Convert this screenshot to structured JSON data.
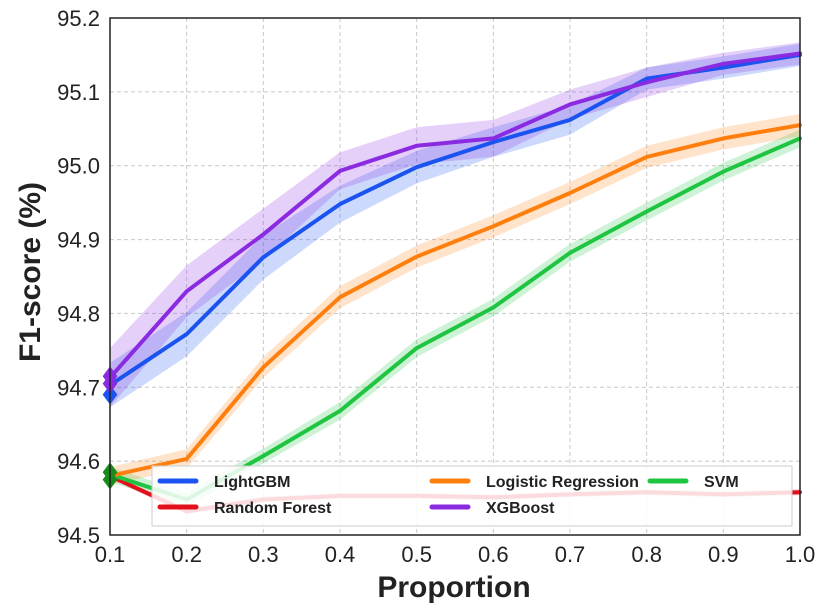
{
  "chart_data": {
    "type": "line",
    "xlabel": "Proportion",
    "ylabel": "F1-score (%)",
    "xlim": [
      0.1,
      1.0
    ],
    "ylim": [
      94.5,
      95.2
    ],
    "xticks": [
      "0.1",
      "0.2",
      "0.3",
      "0.4",
      "0.5",
      "0.6",
      "0.7",
      "0.8",
      "0.9",
      "1.0"
    ],
    "yticks": [
      "94.5",
      "94.6",
      "94.7",
      "94.8",
      "94.9",
      "95.0",
      "95.1",
      "95.2"
    ],
    "grid": true,
    "legend_position": "bottom",
    "x": [
      0.1,
      0.2,
      0.3,
      0.4,
      0.5,
      0.6,
      0.7,
      0.8,
      0.9,
      1.0
    ],
    "series": [
      {
        "name": "LightGBM",
        "color": "#1a53f0",
        "values": [
          94.703,
          94.772,
          94.876,
          94.948,
          94.998,
          95.032,
          95.062,
          95.118,
          95.133,
          95.15
        ],
        "band": [
          0.03,
          0.03,
          0.03,
          0.025,
          0.022,
          0.02,
          0.02,
          0.015,
          0.015,
          0.015
        ]
      },
      {
        "name": "Logistic Regression",
        "color": "#ff7f0e",
        "values": [
          94.58,
          94.603,
          94.727,
          94.822,
          94.877,
          94.918,
          94.963,
          95.012,
          95.037,
          95.055
        ],
        "band": [
          0.012,
          0.013,
          0.014,
          0.015,
          0.015,
          0.015,
          0.015,
          0.015,
          0.015,
          0.015
        ]
      },
      {
        "name": "SVM",
        "color": "#1fc441",
        "values": [
          94.582,
          94.548,
          94.607,
          94.668,
          94.753,
          94.808,
          94.882,
          94.938,
          94.992,
          95.037
        ],
        "band": [
          0.01,
          0.01,
          0.01,
          0.012,
          0.012,
          0.012,
          0.012,
          0.012,
          0.012,
          0.012
        ]
      },
      {
        "name": "Random Forest",
        "color": "#e3101b",
        "values": [
          94.58,
          94.532,
          94.548,
          94.553,
          94.553,
          94.551,
          94.555,
          94.558,
          94.555,
          94.558
        ],
        "band": [
          0.004,
          0.004,
          0.004,
          0.004,
          0.004,
          0.004,
          0.004,
          0.004,
          0.004,
          0.004
        ]
      },
      {
        "name": "XGBoost",
        "color": "#8a2be2",
        "values": [
          94.713,
          94.83,
          94.907,
          94.993,
          95.027,
          95.037,
          95.083,
          95.113,
          95.138,
          95.152
        ],
        "band": [
          0.04,
          0.035,
          0.035,
          0.025,
          0.025,
          0.025,
          0.02,
          0.02,
          0.015,
          0.015
        ]
      }
    ],
    "markers": [
      {
        "series": "LightGBM",
        "x": 0.1,
        "y": 94.69,
        "color": "#1a53f0"
      },
      {
        "series": "XGBoost",
        "x": 0.1,
        "y": 94.705,
        "color": "#8a2be2"
      },
      {
        "series": "XGBoost",
        "x": 0.1,
        "y": 94.715,
        "color": "#8a2be2"
      },
      {
        "series": "SVM",
        "x": 0.1,
        "y": 94.575,
        "color": "#1a8a1a"
      },
      {
        "series": "SVM",
        "x": 0.1,
        "y": 94.585,
        "color": "#1a8a1a"
      }
    ]
  }
}
